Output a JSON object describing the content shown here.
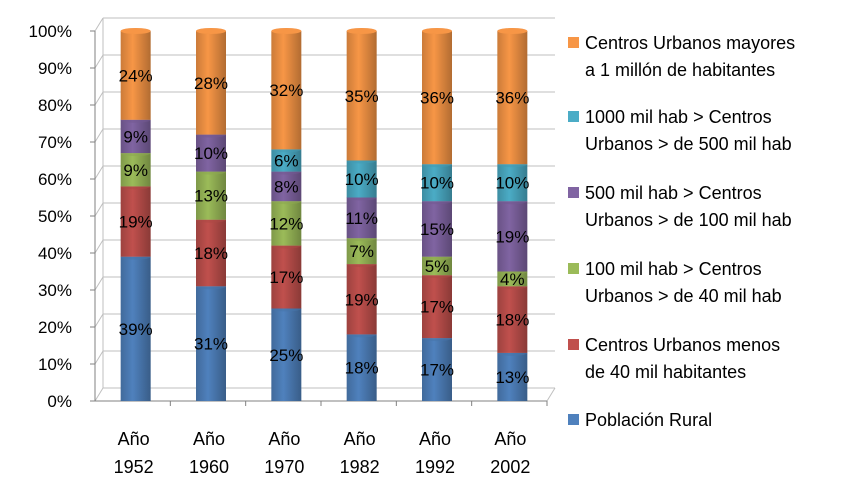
{
  "chart_data": {
    "type": "bar",
    "stacked": true,
    "categories": [
      "Año\n1952",
      "Año\n1960",
      "Año\n1970",
      "Año\n1982",
      "Año\n1992",
      "Año\n2002"
    ],
    "y_ticks": [
      "0%",
      "10%",
      "20%",
      "30%",
      "40%",
      "50%",
      "60%",
      "70%",
      "80%",
      "90%",
      "100%"
    ],
    "ylim": [
      0,
      100
    ],
    "grid": true,
    "legend_position": "right",
    "series": [
      {
        "name": "Población Rural",
        "color": "#4F81BD",
        "values": [
          39,
          31,
          25,
          18,
          17,
          13
        ],
        "labels": [
          "39%",
          "31%",
          "25%",
          "18%",
          "17%",
          "13%"
        ]
      },
      {
        "name": "Centros Urbanos menos de 40 mil habitantes",
        "color": "#C0504D",
        "values": [
          19,
          18,
          17,
          19,
          17,
          18
        ],
        "labels": [
          "19%",
          "18%",
          "17%",
          "19%",
          "17%",
          "18%"
        ]
      },
      {
        "name": "100 mil hab > Centros Urbanos > de 40 mil hab",
        "color": "#9BBB59",
        "values": [
          9,
          13,
          12,
          7,
          5,
          4
        ],
        "labels": [
          "9%",
          "13%",
          "12%",
          "7%",
          "5%",
          "4%"
        ]
      },
      {
        "name": "500 mil hab > Centros Urbanos > de 100 mil hab",
        "color": "#8064A2",
        "values": [
          9,
          10,
          8,
          11,
          15,
          19
        ],
        "labels": [
          "9%",
          "10%",
          "8%",
          "11%",
          "15%",
          "19%"
        ]
      },
      {
        "name": "1000 mil hab > Centros Urbanos > de 500 mil hab",
        "color": "#4BACC6",
        "values": [
          0,
          0,
          6,
          10,
          10,
          10
        ],
        "labels": [
          "",
          "",
          "6%",
          "10%",
          "10%",
          "10%"
        ]
      },
      {
        "name": "Centros Urbanos mayores a 1 millón de habitantes",
        "color": "#F79646",
        "values": [
          24,
          28,
          32,
          35,
          36,
          36
        ],
        "labels": [
          "24%",
          "28%",
          "32%",
          "35%",
          "36%",
          "36%"
        ]
      }
    ]
  },
  "legend": [
    {
      "label": "Centros Urbanos mayores\na 1 millón de habitantes",
      "color": "#F79646"
    },
    {
      "label": "1000 mil hab > Centros\nUrbanos > de 500 mil hab",
      "color": "#4BACC6"
    },
    {
      "label": "500 mil hab > Centros\nUrbanos > de 100 mil hab",
      "color": "#8064A2"
    },
    {
      "label": "100 mil hab > Centros\nUrbanos > de 40 mil hab",
      "color": "#9BBB59"
    },
    {
      "label": "Centros Urbanos menos\nde 40 mil habitantes",
      "color": "#C0504D"
    },
    {
      "label": "Población Rural",
      "color": "#4F81BD"
    }
  ]
}
